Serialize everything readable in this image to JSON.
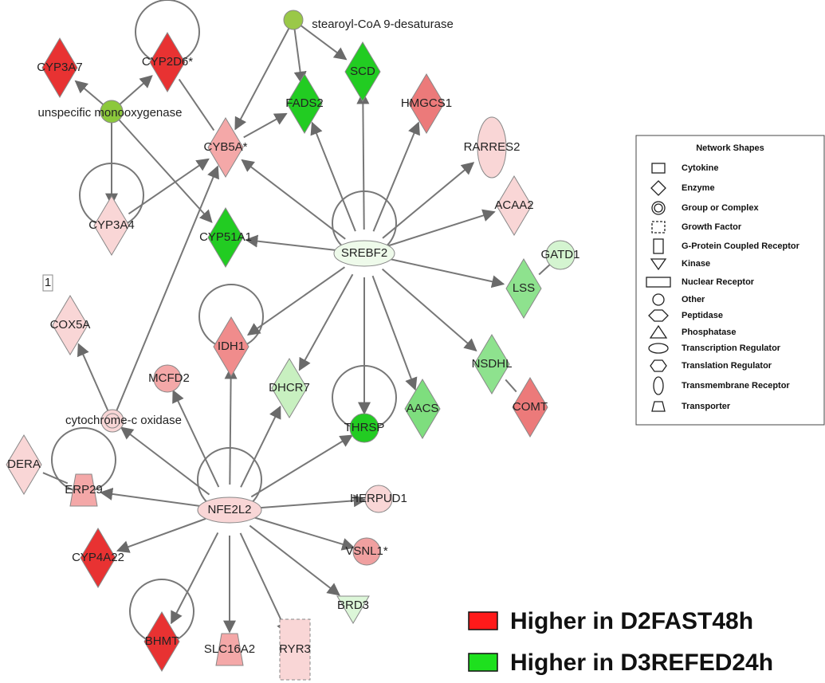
{
  "nodes": [
    {
      "label": "CYP3A7"
    },
    {
      "label": "CYP2D6*"
    },
    {
      "label": "stearoyl-CoA 9-desaturase"
    },
    {
      "label": "SCD"
    },
    {
      "label": "FADS2"
    },
    {
      "label": "HMGCS1"
    },
    {
      "label": "RARRES2"
    },
    {
      "label": "unspecific monooxygenase"
    },
    {
      "label": "CYB5A*"
    },
    {
      "label": "ACAA2"
    },
    {
      "label": "CYP3A4"
    },
    {
      "label": "CYP51A1"
    },
    {
      "label": "SREBF2"
    },
    {
      "label": "GATD1"
    },
    {
      "label": "LSS"
    },
    {
      "label": "1"
    },
    {
      "label": "COX5A"
    },
    {
      "label": "IDH1"
    },
    {
      "label": "NSDHL"
    },
    {
      "label": "MCFD2"
    },
    {
      "label": "DHCR7"
    },
    {
      "label": "AACS"
    },
    {
      "label": "COMT"
    },
    {
      "label": "cytochrome-c oxidase"
    },
    {
      "label": "THRSP"
    },
    {
      "label": "DERA"
    },
    {
      "label": "ERP29"
    },
    {
      "label": "NFE2L2"
    },
    {
      "label": "HERPUD1"
    },
    {
      "label": "VSNL1*"
    },
    {
      "label": "CYP4A22"
    },
    {
      "label": "BRD3"
    },
    {
      "label": "BHMT"
    },
    {
      "label": "SLC16A2"
    },
    {
      "label": "RYR3"
    }
  ],
  "legend": {
    "title": "Network Shapes",
    "items": [
      "Cytokine",
      "Enzyme",
      "Group or Complex",
      "Growth Factor",
      "G-Protein Coupled Receptor",
      "Kinase",
      "Nuclear Receptor",
      "Other",
      "Peptidase",
      "Phosphatase",
      "Transcription Regulator",
      "Translation Regulator",
      "Transmembrane Receptor",
      "Transporter"
    ]
  },
  "color_legend": [
    {
      "label": "Higher in D2FAST48h",
      "color": "#ff1a1a"
    },
    {
      "label": "Higher in D3REFED24h",
      "color": "#1ee01e"
    }
  ]
}
